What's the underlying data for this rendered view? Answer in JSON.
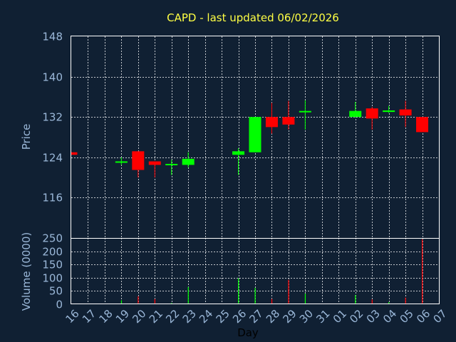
{
  "chart_data": {
    "type": "candlestick",
    "title": "CAPD - last updated 06/02/2026",
    "xlabel": "Day",
    "price_panel": {
      "ylabel": "Price",
      "ylim": [
        108,
        148
      ],
      "yticks": [
        "148",
        "140",
        "132",
        "124",
        "116"
      ],
      "grid": true
    },
    "volume_panel": {
      "ylabel": "Volume (0000)",
      "ylim": [
        0,
        250
      ],
      "yticks": [
        "250",
        "200",
        "150",
        "100",
        "50",
        "0"
      ],
      "grid": true
    },
    "x_tick_labels": [
      "16",
      "17",
      "18",
      "19",
      "20",
      "21",
      "22",
      "23",
      "24",
      "25",
      "26",
      "27",
      "28",
      "29",
      "30",
      "31",
      "01",
      "02",
      "03",
      "04",
      "05",
      "06",
      "07"
    ],
    "up_color": "#00ff00",
    "down_color": "#ff0000",
    "candles": [
      {
        "day": "16",
        "open": 125.0,
        "high": 125.0,
        "low": 124.5,
        "close": 124.5,
        "volume": 0
      },
      {
        "day": "19",
        "open": 123.0,
        "high": 124.0,
        "low": 122.5,
        "close": 123.2,
        "volume": 15
      },
      {
        "day": "20",
        "open": 125.2,
        "high": 125.2,
        "low": 120.0,
        "close": 121.5,
        "volume": 30
      },
      {
        "day": "21",
        "open": 123.2,
        "high": 123.2,
        "low": 120.0,
        "close": 122.5,
        "volume": 20
      },
      {
        "day": "22",
        "open": 122.5,
        "high": 123.5,
        "low": 120.5,
        "close": 122.7,
        "volume": 5
      },
      {
        "day": "23",
        "open": 122.5,
        "high": 125.0,
        "low": 122.0,
        "close": 123.7,
        "volume": 65
      },
      {
        "day": "26",
        "open": 124.5,
        "high": 125.8,
        "low": 120.5,
        "close": 125.2,
        "volume": 98
      },
      {
        "day": "27",
        "open": 125.0,
        "high": 132.0,
        "low": 125.0,
        "close": 132.0,
        "volume": 62
      },
      {
        "day": "28",
        "open": 132.0,
        "high": 134.8,
        "low": 128.7,
        "close": 130.0,
        "volume": 20
      },
      {
        "day": "29",
        "open": 132.0,
        "high": 135.2,
        "low": 129.5,
        "close": 130.5,
        "volume": 92
      },
      {
        "day": "30",
        "open": 133.0,
        "high": 135.3,
        "low": 129.5,
        "close": 133.2,
        "volume": 40
      },
      {
        "day": "02",
        "open": 132.0,
        "high": 135.0,
        "low": 132.0,
        "close": 133.2,
        "volume": 35
      },
      {
        "day": "03",
        "open": 133.7,
        "high": 134.0,
        "low": 129.5,
        "close": 131.7,
        "volume": 18
      },
      {
        "day": "04",
        "open": 133.0,
        "high": 134.2,
        "low": 132.8,
        "close": 133.3,
        "volume": 8
      },
      {
        "day": "05",
        "open": 133.5,
        "high": 135.2,
        "low": 130.0,
        "close": 132.3,
        "volume": 25
      },
      {
        "day": "06",
        "open": 132.0,
        "high": 132.0,
        "low": 129.0,
        "close": 129.0,
        "volume": 245
      }
    ]
  }
}
